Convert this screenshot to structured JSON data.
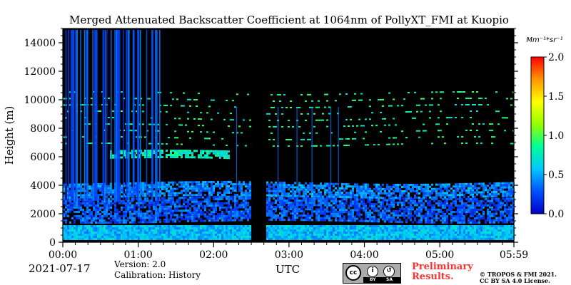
{
  "chart_data": {
    "type": "heatmap",
    "title": "Merged Attenuated Backscatter Coefficient at 1064nm of PollyXT_FMI at Kuopio",
    "ylabel": "Height (m)",
    "xlabel": "",
    "xlim_hours": [
      0,
      5.983
    ],
    "ylim": [
      0,
      15000
    ],
    "x_ticks": [
      {
        "value": 0,
        "label": "00:00"
      },
      {
        "value": 1,
        "label": "01:00"
      },
      {
        "value": 2,
        "label": "02:00"
      },
      {
        "value": 3,
        "label": "03:00"
      },
      {
        "value": 4,
        "label": "04:00"
      },
      {
        "value": 5,
        "label": "05:00"
      },
      {
        "value": 5.983,
        "label": "05:59"
      }
    ],
    "y_ticks": [
      0,
      2000,
      4000,
      6000,
      8000,
      10000,
      12000,
      14000
    ],
    "colorbar": {
      "unit": "Mm⁻¹*sr⁻¹",
      "min": 0.0,
      "max": 2.0,
      "ticks": [
        "0.0",
        "0.5",
        "1.0",
        "1.5",
        "2.0"
      ],
      "colormap": [
        "#0000c8",
        "#0050ff",
        "#00c8ff",
        "#00ff96",
        "#96ff00",
        "#ffff00",
        "#ff9600",
        "#ff0000"
      ]
    },
    "no_data_interval_hours": [
      2.5,
      2.67
    ],
    "layers": [
      {
        "feature": "boundary layer",
        "height_m": [
          200,
          1200
        ],
        "level": 0.55
      },
      {
        "feature": "aerosol layer",
        "height_m": [
          1500,
          3200
        ],
        "level": 0.3
      },
      {
        "feature": "aerosol layer",
        "height_m": [
          3200,
          4200
        ],
        "level": 0.4
      },
      {
        "feature": "thin layer",
        "height_m": [
          5800,
          6400
        ],
        "time_hours": [
          0.6,
          2.2
        ],
        "level": 0.75
      },
      {
        "feature": "sparse signal",
        "height_m": [
          6500,
          10500
        ],
        "level": 0.85
      }
    ],
    "grid": false
  },
  "footer": {
    "date": "2021-07-17",
    "version": "Version: 2.0",
    "calibration": "Calibration: History",
    "time_zone": "UTC",
    "license_badge": {
      "by": "BY",
      "sa": "SA"
    },
    "preliminary": "Preliminary Results.",
    "copyright_line1": "© TROPOS & FMI 2021.",
    "copyright_line2": "CC BY SA 4.0 License.",
    "preliminary_color": "#ff3232"
  }
}
